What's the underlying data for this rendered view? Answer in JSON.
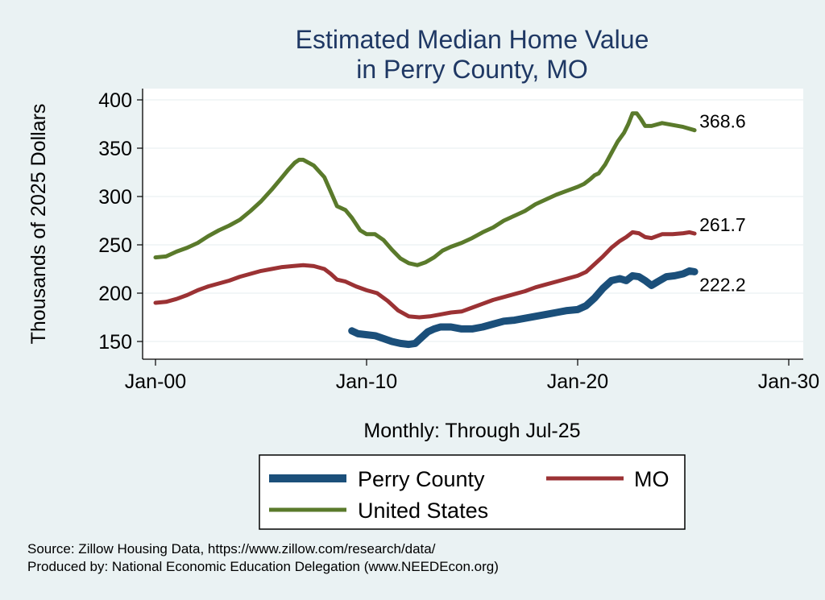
{
  "chart_data": {
    "type": "line",
    "title": [
      "Estimated Median Home Value",
      "in Perry County, MO"
    ],
    "xlabel": "Monthly: Through Jul-25",
    "ylabel": "Thousands of 2025 Dollars",
    "x_ticks": [
      "Jan-00",
      "Jan-10",
      "Jan-20",
      "Jan-30"
    ],
    "x_tick_values": [
      2000,
      2010,
      2020,
      2030
    ],
    "y_ticks": [
      150,
      200,
      250,
      300,
      350,
      400
    ],
    "xlim": [
      2000,
      2030
    ],
    "ylim": [
      135,
      410
    ],
    "grid": "horizontal",
    "legend_position": "bottom",
    "series": [
      {
        "name": "United States",
        "color": "#5a7a2b",
        "end_label": "368.6",
        "points": [
          [
            2000.0,
            237
          ],
          [
            2000.5,
            238
          ],
          [
            2001.0,
            243
          ],
          [
            2001.5,
            247
          ],
          [
            2002.0,
            252
          ],
          [
            2002.5,
            259
          ],
          [
            2003.0,
            265
          ],
          [
            2003.5,
            270
          ],
          [
            2004.0,
            276
          ],
          [
            2004.5,
            285
          ],
          [
            2005.0,
            295
          ],
          [
            2005.5,
            307
          ],
          [
            2006.0,
            320
          ],
          [
            2006.3,
            328
          ],
          [
            2006.6,
            335
          ],
          [
            2006.8,
            338
          ],
          [
            2007.0,
            338
          ],
          [
            2007.5,
            332
          ],
          [
            2008.0,
            320
          ],
          [
            2008.3,
            305
          ],
          [
            2008.6,
            290
          ],
          [
            2009.0,
            286
          ],
          [
            2009.3,
            278
          ],
          [
            2009.7,
            265
          ],
          [
            2010.0,
            261
          ],
          [
            2010.4,
            261
          ],
          [
            2010.8,
            255
          ],
          [
            2011.2,
            245
          ],
          [
            2011.6,
            236
          ],
          [
            2012.0,
            231
          ],
          [
            2012.4,
            229
          ],
          [
            2012.8,
            232
          ],
          [
            2013.2,
            237
          ],
          [
            2013.6,
            244
          ],
          [
            2014.0,
            248
          ],
          [
            2014.5,
            252
          ],
          [
            2015.0,
            257
          ],
          [
            2015.5,
            263
          ],
          [
            2016.0,
            268
          ],
          [
            2016.5,
            275
          ],
          [
            2017.0,
            280
          ],
          [
            2017.5,
            285
          ],
          [
            2018.0,
            292
          ],
          [
            2018.5,
            297
          ],
          [
            2019.0,
            302
          ],
          [
            2019.5,
            306
          ],
          [
            2020.0,
            310
          ],
          [
            2020.3,
            313
          ],
          [
            2020.6,
            318
          ],
          [
            2020.8,
            322
          ],
          [
            2021.0,
            324
          ],
          [
            2021.3,
            333
          ],
          [
            2021.6,
            345
          ],
          [
            2021.9,
            357
          ],
          [
            2022.2,
            366
          ],
          [
            2022.4,
            375
          ],
          [
            2022.6,
            386
          ],
          [
            2022.8,
            386
          ],
          [
            2023.0,
            380
          ],
          [
            2023.2,
            373
          ],
          [
            2023.5,
            373
          ],
          [
            2024.0,
            376
          ],
          [
            2024.5,
            374
          ],
          [
            2025.0,
            372
          ],
          [
            2025.54,
            368.6
          ]
        ]
      },
      {
        "name": "MO",
        "color": "#9b3234",
        "end_label": "261.7",
        "points": [
          [
            2000.0,
            190
          ],
          [
            2000.5,
            191
          ],
          [
            2001.0,
            194
          ],
          [
            2001.5,
            198
          ],
          [
            2002.0,
            203
          ],
          [
            2002.5,
            207
          ],
          [
            2003.0,
            210
          ],
          [
            2003.5,
            213
          ],
          [
            2004.0,
            217
          ],
          [
            2004.5,
            220
          ],
          [
            2005.0,
            223
          ],
          [
            2005.5,
            225
          ],
          [
            2006.0,
            227
          ],
          [
            2006.5,
            228
          ],
          [
            2007.0,
            229
          ],
          [
            2007.5,
            228
          ],
          [
            2008.0,
            225
          ],
          [
            2008.3,
            220
          ],
          [
            2008.6,
            214
          ],
          [
            2009.0,
            212
          ],
          [
            2009.5,
            207
          ],
          [
            2010.0,
            203
          ],
          [
            2010.5,
            200
          ],
          [
            2011.0,
            192
          ],
          [
            2011.5,
            182
          ],
          [
            2012.0,
            176
          ],
          [
            2012.5,
            175
          ],
          [
            2013.0,
            176
          ],
          [
            2013.5,
            178
          ],
          [
            2014.0,
            180
          ],
          [
            2014.5,
            181
          ],
          [
            2015.0,
            185
          ],
          [
            2015.5,
            189
          ],
          [
            2016.0,
            193
          ],
          [
            2016.5,
            196
          ],
          [
            2017.0,
            199
          ],
          [
            2017.5,
            202
          ],
          [
            2018.0,
            206
          ],
          [
            2018.5,
            209
          ],
          [
            2019.0,
            212
          ],
          [
            2019.5,
            215
          ],
          [
            2020.0,
            218
          ],
          [
            2020.4,
            222
          ],
          [
            2020.8,
            230
          ],
          [
            2021.2,
            238
          ],
          [
            2021.6,
            247
          ],
          [
            2022.0,
            254
          ],
          [
            2022.3,
            258
          ],
          [
            2022.6,
            263
          ],
          [
            2022.9,
            262
          ],
          [
            2023.2,
            258
          ],
          [
            2023.5,
            257
          ],
          [
            2024.0,
            261
          ],
          [
            2024.5,
            261
          ],
          [
            2025.0,
            262
          ],
          [
            2025.3,
            263
          ],
          [
            2025.54,
            261.7
          ]
        ]
      },
      {
        "name": "Perry County",
        "color": "#1b4f7a",
        "end_label": "222.2",
        "points": [
          [
            2009.3,
            161
          ],
          [
            2009.6,
            158
          ],
          [
            2010.0,
            157
          ],
          [
            2010.4,
            156
          ],
          [
            2010.8,
            153
          ],
          [
            2011.2,
            150
          ],
          [
            2011.6,
            148
          ],
          [
            2012.0,
            147
          ],
          [
            2012.3,
            148
          ],
          [
            2012.6,
            154
          ],
          [
            2012.9,
            160
          ],
          [
            2013.2,
            163
          ],
          [
            2013.5,
            165
          ],
          [
            2014.0,
            165
          ],
          [
            2014.5,
            163
          ],
          [
            2015.0,
            163
          ],
          [
            2015.5,
            165
          ],
          [
            2016.0,
            168
          ],
          [
            2016.5,
            171
          ],
          [
            2017.0,
            172
          ],
          [
            2017.5,
            174
          ],
          [
            2018.0,
            176
          ],
          [
            2018.5,
            178
          ],
          [
            2019.0,
            180
          ],
          [
            2019.5,
            182
          ],
          [
            2020.0,
            183
          ],
          [
            2020.4,
            187
          ],
          [
            2020.8,
            195
          ],
          [
            2021.2,
            205
          ],
          [
            2021.6,
            213
          ],
          [
            2022.0,
            215
          ],
          [
            2022.3,
            213
          ],
          [
            2022.6,
            218
          ],
          [
            2022.9,
            217
          ],
          [
            2023.2,
            213
          ],
          [
            2023.5,
            208
          ],
          [
            2023.8,
            212
          ],
          [
            2024.2,
            217
          ],
          [
            2024.6,
            218
          ],
          [
            2025.0,
            220
          ],
          [
            2025.3,
            223
          ],
          [
            2025.54,
            222.2
          ]
        ]
      }
    ],
    "legend": [
      {
        "name": "Perry County",
        "color": "#1b4f7a"
      },
      {
        "name": "MO",
        "color": "#9b3234"
      },
      {
        "name": "United States",
        "color": "#5a7a2b"
      }
    ]
  },
  "notes": {
    "source": "Source: Zillow Housing Data, https://www.zillow.com/research/data/",
    "produced_by": "Produced by: National Economic Education Delegation (www.NEEDEcon.org)"
  }
}
